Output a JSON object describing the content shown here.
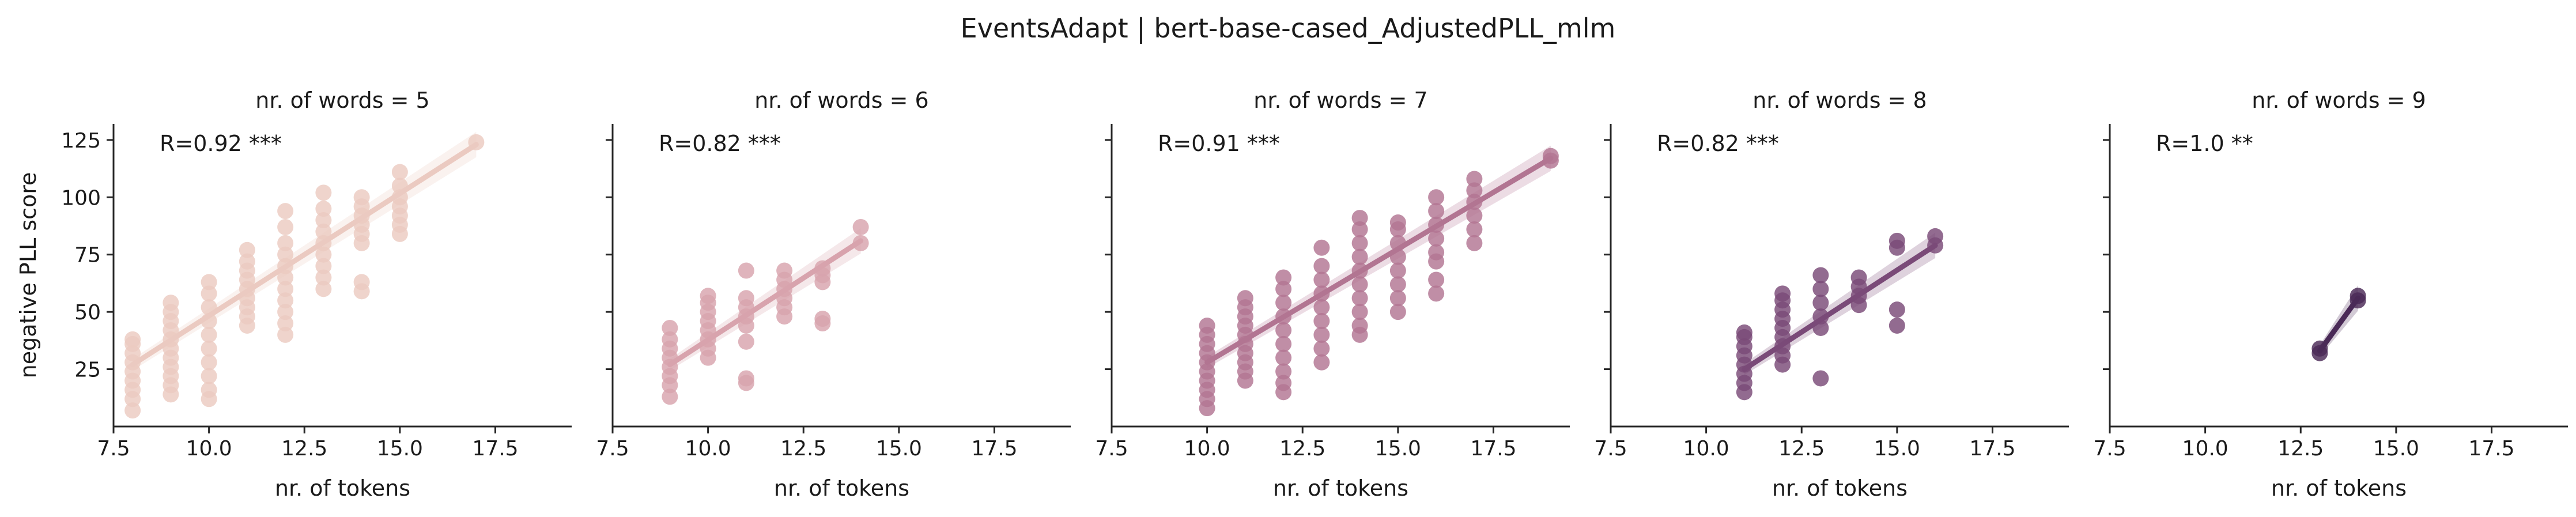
{
  "suptitle": "EventsAdapt | bert-base-cased_AdjustedPLL_mlm",
  "chart_data": {
    "type": "scatter",
    "title": "EventsAdapt | bert-base-cased_AdjustedPLL_mlm",
    "xlabel": "nr. of tokens",
    "ylabel": "negative PLL score",
    "xlim": [
      7.5,
      19.5
    ],
    "ylim": [
      0,
      132
    ],
    "xticks": [
      7.5,
      10.0,
      12.5,
      15.0,
      17.5
    ],
    "xtick_labels": [
      "7.5",
      "10.0",
      "12.5",
      "15.0",
      "17.5"
    ],
    "yticks": [
      25,
      50,
      75,
      100,
      125
    ],
    "ytick_labels": [
      "25",
      "50",
      "75",
      "100",
      "125"
    ],
    "grid": false,
    "panels": [
      {
        "title": "nr. of words = 5",
        "annotation": "R=0.92 ***",
        "color": "#ebcac1",
        "regression": {
          "x": [
            8,
            17
          ],
          "y": [
            27,
            123
          ]
        },
        "points": [
          {
            "x": 8,
            "y": [
              7,
              12,
              16,
              20,
              24,
              28,
              32,
              36,
              38
            ]
          },
          {
            "x": 9,
            "y": [
              14,
              18,
              22,
              26,
              30,
              34,
              38,
              42,
              46,
              50,
              54
            ]
          },
          {
            "x": 10,
            "y": [
              12,
              16,
              22,
              28,
              34,
              40,
              46,
              52,
              58,
              63
            ]
          },
          {
            "x": 11,
            "y": [
              44,
              48,
              52,
              56,
              60,
              64,
              68,
              72,
              77
            ]
          },
          {
            "x": 12,
            "y": [
              40,
              45,
              50,
              55,
              60,
              65,
              70,
              75,
              80,
              87,
              94
            ]
          },
          {
            "x": 13,
            "y": [
              60,
              65,
              70,
              75,
              80,
              85,
              90,
              95,
              102
            ]
          },
          {
            "x": 14,
            "y": [
              59,
              63,
              80,
              84,
              88,
              92,
              96,
              100
            ]
          },
          {
            "x": 15,
            "y": [
              84,
              88,
              92,
              96,
              100,
              105,
              111
            ]
          },
          {
            "x": 17,
            "y": [
              124
            ]
          }
        ]
      },
      {
        "title": "nr. of words = 6",
        "annotation": "R=0.82 ***",
        "color": "#d8a3ad",
        "regression": {
          "x": [
            9,
            14
          ],
          "y": [
            27,
            81
          ]
        },
        "points": [
          {
            "x": 9,
            "y": [
              13,
              18,
              22,
              26,
              30,
              34,
              38,
              43
            ]
          },
          {
            "x": 10,
            "y": [
              30,
              34,
              38,
              42,
              46,
              50,
              54,
              57
            ]
          },
          {
            "x": 11,
            "y": [
              19,
              21,
              37,
              44,
              48,
              52,
              56,
              68
            ]
          },
          {
            "x": 12,
            "y": [
              48,
              52,
              56,
              60,
              64,
              68
            ]
          },
          {
            "x": 13,
            "y": [
              45,
              47,
              63,
              66,
              69
            ]
          },
          {
            "x": 14,
            "y": [
              80,
              87
            ]
          }
        ]
      },
      {
        "title": "nr. of words = 7",
        "annotation": "R=0.91 ***",
        "color": "#b27592",
        "regression": {
          "x": [
            10,
            19
          ],
          "y": [
            28,
            117
          ]
        },
        "points": [
          {
            "x": 10,
            "y": [
              8,
              12,
              16,
              20,
              24,
              28,
              32,
              36,
              40,
              44
            ]
          },
          {
            "x": 11,
            "y": [
              20,
              24,
              28,
              32,
              36,
              40,
              44,
              48,
              52,
              56
            ]
          },
          {
            "x": 12,
            "y": [
              15,
              19,
              24,
              30,
              36,
              42,
              48,
              54,
              60,
              65
            ]
          },
          {
            "x": 13,
            "y": [
              28,
              34,
              40,
              46,
              52,
              58,
              64,
              70,
              78
            ]
          },
          {
            "x": 14,
            "y": [
              40,
              44,
              50,
              56,
              62,
              68,
              74,
              80,
              86,
              91
            ]
          },
          {
            "x": 15,
            "y": [
              50,
              56,
              62,
              68,
              74,
              80,
              86,
              89
            ]
          },
          {
            "x": 16,
            "y": [
              58,
              64,
              72,
              76,
              82,
              88,
              94,
              100
            ]
          },
          {
            "x": 17,
            "y": [
              80,
              86,
              92,
              98,
              103,
              108
            ]
          },
          {
            "x": 19,
            "y": [
              116,
              118
            ]
          }
        ]
      },
      {
        "title": "nr. of words = 8",
        "annotation": "R=0.82 ***",
        "color": "#7a4a78",
        "regression": {
          "x": [
            11,
            16
          ],
          "y": [
            25,
            79
          ]
        },
        "points": [
          {
            "x": 11,
            "y": [
              15,
              19,
              23,
              27,
              31,
              35,
              39,
              41
            ]
          },
          {
            "x": 12,
            "y": [
              27,
              31,
              35,
              39,
              43,
              47,
              51,
              55,
              58
            ]
          },
          {
            "x": 13,
            "y": [
              21,
              43,
              48,
              54,
              60,
              66
            ]
          },
          {
            "x": 14,
            "y": [
              53,
              57,
              61,
              65
            ]
          },
          {
            "x": 15,
            "y": [
              44,
              51,
              78,
              81
            ]
          },
          {
            "x": 16,
            "y": [
              79,
              83
            ]
          }
        ]
      },
      {
        "title": "nr. of words = 9",
        "annotation": "R=1.0 **",
        "color": "#4a2a57",
        "regression": {
          "x": [
            13,
            14
          ],
          "y": [
            33,
            56
          ]
        },
        "points": [
          {
            "x": 13,
            "y": [
              32,
              34
            ]
          },
          {
            "x": 14,
            "y": [
              55,
              57
            ]
          }
        ]
      }
    ]
  }
}
